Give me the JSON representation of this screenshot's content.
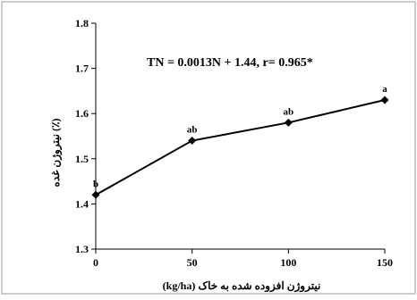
{
  "chart_data": {
    "type": "line",
    "equation": "TN = 0.0013N + 1.44, r= 0.965*",
    "xlabel": "نیتروژن افزوده شده به خاک (kg/ha)",
    "ylabel": "نیتروژن غده (٪)",
    "x": [
      0,
      50,
      100,
      150
    ],
    "xticks": [
      "0",
      "50",
      "100",
      "150"
    ],
    "xlim": [
      0,
      150
    ],
    "ylim": [
      1.3,
      1.8
    ],
    "yticks": [
      "1.3",
      "1.4",
      "1.5",
      "1.6",
      "1.7",
      "1.8"
    ],
    "series": [
      {
        "values": [
          1.42,
          1.54,
          1.58,
          1.63
        ],
        "point_labels": [
          "b",
          "ab",
          "ab",
          "a"
        ],
        "color": "#000000",
        "marker": "diamond"
      }
    ],
    "grid": false,
    "legend": "none"
  }
}
